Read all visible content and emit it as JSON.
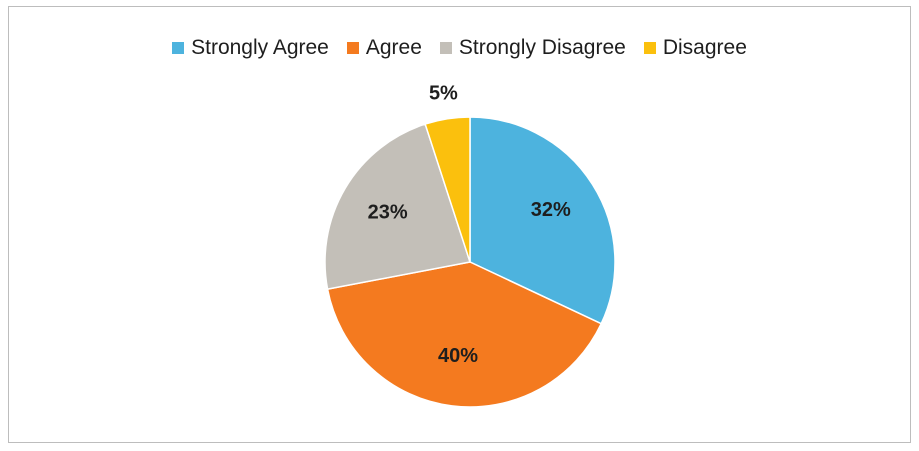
{
  "chart_data": {
    "type": "pie",
    "title": "",
    "legend_position": "top",
    "slices": [
      {
        "name": "Strongly Agree",
        "value": 32,
        "label": "32%",
        "color": "#4db3de"
      },
      {
        "name": "Agree",
        "value": 40,
        "label": "40%",
        "color": "#f47a1f"
      },
      {
        "name": "Strongly Disagree",
        "value": 23,
        "label": "23%",
        "color": "#c3bfb8"
      },
      {
        "name": "Disagree",
        "value": 5,
        "label": "5%",
        "color": "#fbc00d"
      }
    ]
  }
}
